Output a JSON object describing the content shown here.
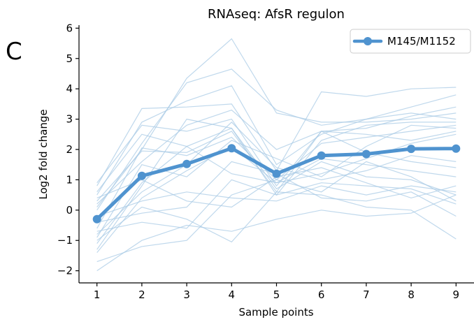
{
  "panel_label": "C",
  "chart_data": {
    "type": "line",
    "title": "RNAseq: AfsR regulon",
    "xlabel": "Sample points",
    "ylabel": "Log2 fold change",
    "x": [
      1,
      2,
      3,
      4,
      5,
      6,
      7,
      8,
      9
    ],
    "xlim": [
      0.6,
      9.4
    ],
    "ylim": [
      -2.4,
      6.1
    ],
    "yticks": [
      -2,
      -1,
      0,
      1,
      2,
      3,
      4,
      5,
      6
    ],
    "grid": false,
    "legend_position": "top-right",
    "main_color": "#4f93cf",
    "background_line_color": "#a9cbe6",
    "series": [
      {
        "name": "M145/M1152",
        "values": [
          -0.3,
          1.13,
          1.52,
          2.04,
          1.2,
          1.8,
          1.85,
          2.02,
          2.03
        ]
      }
    ],
    "background_series": [
      [
        0.8,
        3.35,
        3.4,
        3.5,
        1.3,
        3.9,
        3.75,
        4.0,
        4.05
      ],
      [
        0.5,
        2.9,
        3.6,
        4.1,
        1.5,
        2.5,
        3.0,
        3.4,
        3.8
      ],
      [
        0.1,
        2.0,
        4.35,
        5.65,
        3.2,
        2.9,
        2.9,
        3.0,
        3.2
      ],
      [
        0.9,
        2.8,
        2.6,
        3.0,
        0.8,
        2.6,
        2.7,
        3.1,
        3.4
      ],
      [
        0.6,
        2.5,
        2.1,
        2.7,
        0.5,
        2.3,
        2.8,
        2.9,
        2.9
      ],
      [
        0.0,
        2.2,
        4.2,
        4.65,
        3.3,
        2.8,
        3.0,
        3.2,
        3.0
      ],
      [
        0.3,
        1.95,
        1.9,
        2.6,
        0.6,
        2.6,
        2.5,
        2.3,
        2.6
      ],
      [
        -0.6,
        2.05,
        1.8,
        2.4,
        1.0,
        2.2,
        2.4,
        2.6,
        2.8
      ],
      [
        -0.9,
        1.5,
        1.1,
        2.3,
        1.7,
        1.1,
        2.1,
        2.8,
        2.7
      ],
      [
        -1.1,
        0.9,
        2.1,
        1.2,
        0.9,
        1.2,
        1.7,
        2.2,
        2.5
      ],
      [
        -1.3,
        0.8,
        3.0,
        2.7,
        0.7,
        1.6,
        1.1,
        1.0,
        0.5
      ],
      [
        -1.4,
        0.4,
        1.3,
        2.1,
        0.9,
        1.7,
        1.5,
        1.3,
        1.1
      ],
      [
        -0.2,
        0.3,
        0.6,
        0.4,
        0.3,
        0.8,
        0.5,
        0.8,
        0.6
      ],
      [
        -1.7,
        -1.2,
        -1.0,
        0.5,
        1.0,
        0.6,
        1.6,
        1.1,
        0.3
      ],
      [
        -2.0,
        -1.0,
        -0.5,
        -0.7,
        -0.3,
        0.0,
        -0.2,
        -0.1,
        0.5
      ],
      [
        -0.7,
        -0.4,
        -0.6,
        1.0,
        0.5,
        0.9,
        0.8,
        0.7,
        0.2
      ],
      [
        -0.4,
        -0.1,
        0.1,
        1.6,
        1.2,
        0.4,
        0.3,
        0.6,
        -0.2
      ],
      [
        -1.0,
        0.1,
        -0.3,
        -1.05,
        0.6,
        0.5,
        0.1,
        0.0,
        -0.95
      ],
      [
        0.2,
        1.6,
        2.8,
        3.3,
        2.0,
        2.6,
        1.9,
        1.6,
        1.4
      ],
      [
        -0.8,
        0.6,
        1.5,
        2.9,
        1.4,
        1.0,
        1.3,
        1.8,
        1.6
      ],
      [
        0.4,
        1.0,
        0.3,
        0.1,
        1.1,
        1.4,
        0.9,
        0.4,
        0.8
      ]
    ]
  }
}
